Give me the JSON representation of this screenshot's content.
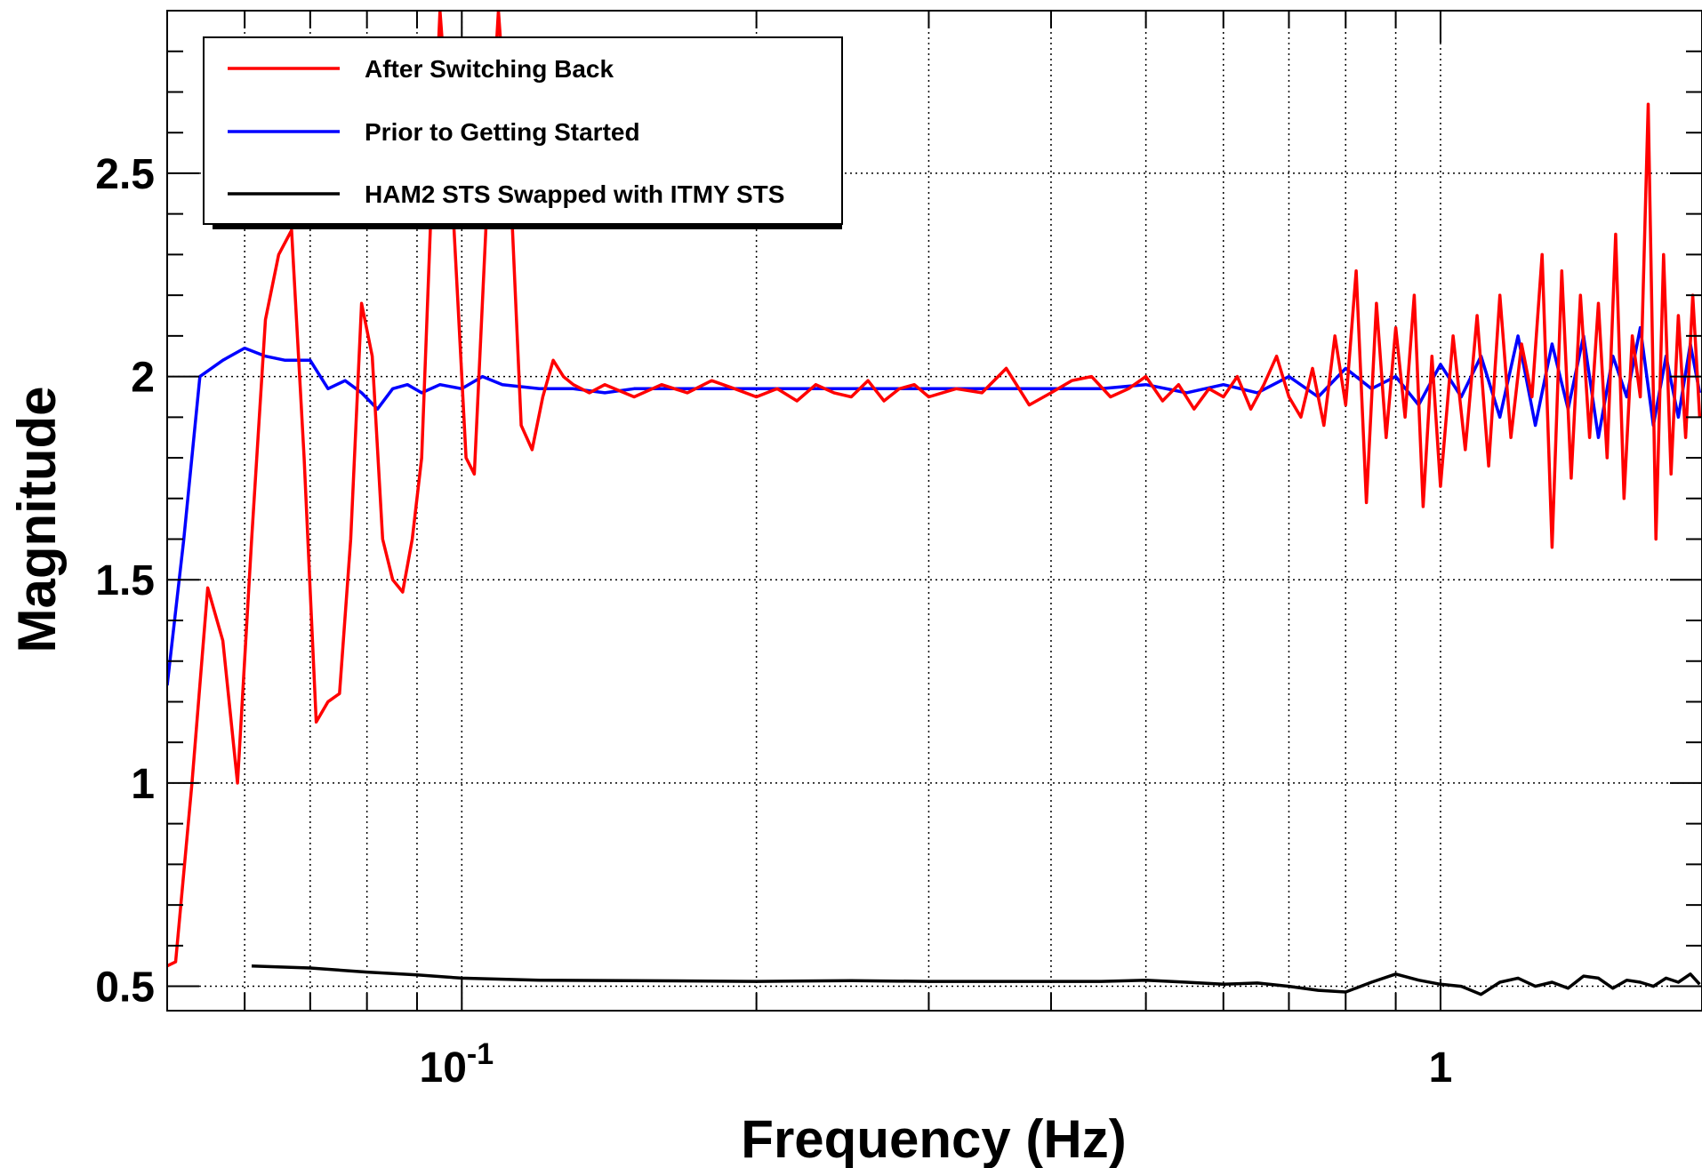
{
  "chart_data": {
    "type": "line",
    "title": "",
    "xlabel": "Frequency (Hz)",
    "ylabel": "Magnitude",
    "xscale": "log",
    "xlim": [
      0.05,
      1.85
    ],
    "ylim": [
      0.44,
      2.9
    ],
    "grid": true,
    "legend_position": "top-left",
    "y_ticks": [
      {
        "value": 0.5,
        "label": "0.5"
      },
      {
        "value": 1,
        "label": "1"
      },
      {
        "value": 1.5,
        "label": "1.5"
      },
      {
        "value": 2,
        "label": "2"
      },
      {
        "value": 2.5,
        "label": "2.5"
      }
    ],
    "x_ticks": [
      {
        "value": 0.1,
        "base": "10",
        "exp": "-1",
        "label": ""
      },
      {
        "value": 1,
        "base": "",
        "exp": "",
        "label": "1"
      }
    ],
    "series": [
      {
        "name": "After Switching Back",
        "color": "#ff0000",
        "x": [
          0.05,
          0.051,
          0.053,
          0.055,
          0.057,
          0.059,
          0.061,
          0.063,
          0.065,
          0.067,
          0.069,
          0.071,
          0.073,
          0.075,
          0.077,
          0.079,
          0.081,
          0.083,
          0.085,
          0.087,
          0.089,
          0.091,
          0.093,
          0.095,
          0.097,
          0.099,
          0.101,
          0.103,
          0.106,
          0.109,
          0.112,
          0.115,
          0.118,
          0.121,
          0.124,
          0.127,
          0.13,
          0.135,
          0.14,
          0.15,
          0.16,
          0.17,
          0.18,
          0.19,
          0.2,
          0.21,
          0.22,
          0.23,
          0.24,
          0.25,
          0.26,
          0.27,
          0.28,
          0.29,
          0.3,
          0.32,
          0.34,
          0.36,
          0.38,
          0.4,
          0.42,
          0.44,
          0.46,
          0.48,
          0.5,
          0.52,
          0.54,
          0.56,
          0.58,
          0.6,
          0.62,
          0.64,
          0.66,
          0.68,
          0.7,
          0.72,
          0.74,
          0.76,
          0.78,
          0.8,
          0.82,
          0.84,
          0.86,
          0.88,
          0.9,
          0.92,
          0.94,
          0.96,
          0.98,
          1.0,
          1.03,
          1.06,
          1.09,
          1.12,
          1.15,
          1.18,
          1.21,
          1.24,
          1.27,
          1.3,
          1.33,
          1.36,
          1.39,
          1.42,
          1.45,
          1.48,
          1.51,
          1.54,
          1.57,
          1.6,
          1.63,
          1.66,
          1.69,
          1.72,
          1.75,
          1.78,
          1.81,
          1.84
        ],
        "y": [
          0.55,
          0.56,
          1.0,
          1.48,
          1.35,
          1.0,
          1.6,
          2.14,
          2.3,
          2.36,
          1.8,
          1.15,
          1.2,
          1.22,
          1.6,
          2.18,
          2.05,
          1.6,
          1.5,
          1.47,
          1.6,
          1.8,
          2.4,
          2.9,
          2.6,
          2.2,
          1.8,
          1.76,
          2.4,
          2.9,
          2.5,
          1.88,
          1.82,
          1.95,
          2.04,
          2.0,
          1.98,
          1.96,
          1.98,
          1.95,
          1.98,
          1.96,
          1.99,
          1.97,
          1.95,
          1.97,
          1.94,
          1.98,
          1.96,
          1.95,
          1.99,
          1.94,
          1.97,
          1.98,
          1.95,
          1.97,
          1.96,
          2.02,
          1.93,
          1.96,
          1.99,
          2.0,
          1.95,
          1.97,
          2.0,
          1.94,
          1.98,
          1.92,
          1.97,
          1.95,
          2.0,
          1.92,
          1.98,
          2.05,
          1.95,
          1.9,
          2.02,
          1.88,
          2.1,
          1.93,
          2.26,
          1.69,
          2.18,
          1.85,
          2.12,
          1.9,
          2.2,
          1.68,
          2.05,
          1.73,
          2.1,
          1.82,
          2.15,
          1.78,
          2.2,
          1.85,
          2.08,
          1.95,
          2.3,
          1.58,
          2.26,
          1.75,
          2.2,
          1.85,
          2.18,
          1.8,
          2.35,
          1.7,
          2.1,
          1.95,
          2.67,
          1.6,
          2.3,
          1.76,
          2.15,
          1.85,
          2.2,
          1.9
        ]
      },
      {
        "name": "Prior to Getting Started",
        "color": "#0000ff",
        "x": [
          0.05,
          0.052,
          0.054,
          0.057,
          0.06,
          0.063,
          0.066,
          0.07,
          0.073,
          0.076,
          0.079,
          0.082,
          0.085,
          0.088,
          0.091,
          0.095,
          0.1,
          0.105,
          0.11,
          0.12,
          0.13,
          0.14,
          0.15,
          0.17,
          0.2,
          0.25,
          0.3,
          0.35,
          0.4,
          0.45,
          0.5,
          0.55,
          0.6,
          0.65,
          0.7,
          0.75,
          0.8,
          0.85,
          0.9,
          0.95,
          1.0,
          1.05,
          1.1,
          1.15,
          1.2,
          1.25,
          1.3,
          1.35,
          1.4,
          1.45,
          1.5,
          1.55,
          1.6,
          1.65,
          1.7,
          1.75,
          1.8,
          1.84
        ],
        "y": [
          1.24,
          1.6,
          2.0,
          2.04,
          2.07,
          2.05,
          2.04,
          2.04,
          1.97,
          1.99,
          1.96,
          1.92,
          1.97,
          1.98,
          1.96,
          1.98,
          1.97,
          2.0,
          1.98,
          1.97,
          1.97,
          1.96,
          1.97,
          1.97,
          1.97,
          1.97,
          1.97,
          1.97,
          1.97,
          1.97,
          1.98,
          1.96,
          1.98,
          1.96,
          2.0,
          1.95,
          2.02,
          1.97,
          2.0,
          1.93,
          2.03,
          1.95,
          2.05,
          1.9,
          2.1,
          1.88,
          2.08,
          1.92,
          2.1,
          1.85,
          2.05,
          1.95,
          2.12,
          1.88,
          2.05,
          1.9,
          2.08,
          1.96
        ]
      },
      {
        "name": "HAM2 STS Swapped with ITMY STS",
        "color": "#000000",
        "x": [
          0.061,
          0.07,
          0.08,
          0.09,
          0.1,
          0.12,
          0.15,
          0.2,
          0.25,
          0.3,
          0.35,
          0.4,
          0.45,
          0.5,
          0.55,
          0.6,
          0.65,
          0.7,
          0.75,
          0.8,
          0.85,
          0.9,
          0.95,
          1.0,
          1.05,
          1.1,
          1.15,
          1.2,
          1.25,
          1.3,
          1.35,
          1.4,
          1.45,
          1.5,
          1.55,
          1.6,
          1.65,
          1.7,
          1.75,
          1.8,
          1.84
        ],
        "y": [
          0.55,
          0.545,
          0.535,
          0.528,
          0.52,
          0.515,
          0.514,
          0.512,
          0.514,
          0.512,
          0.512,
          0.512,
          0.512,
          0.515,
          0.51,
          0.505,
          0.508,
          0.5,
          0.49,
          0.486,
          0.51,
          0.53,
          0.515,
          0.505,
          0.5,
          0.48,
          0.51,
          0.52,
          0.5,
          0.51,
          0.495,
          0.525,
          0.52,
          0.495,
          0.515,
          0.51,
          0.5,
          0.52,
          0.51,
          0.53,
          0.505
        ]
      }
    ]
  }
}
